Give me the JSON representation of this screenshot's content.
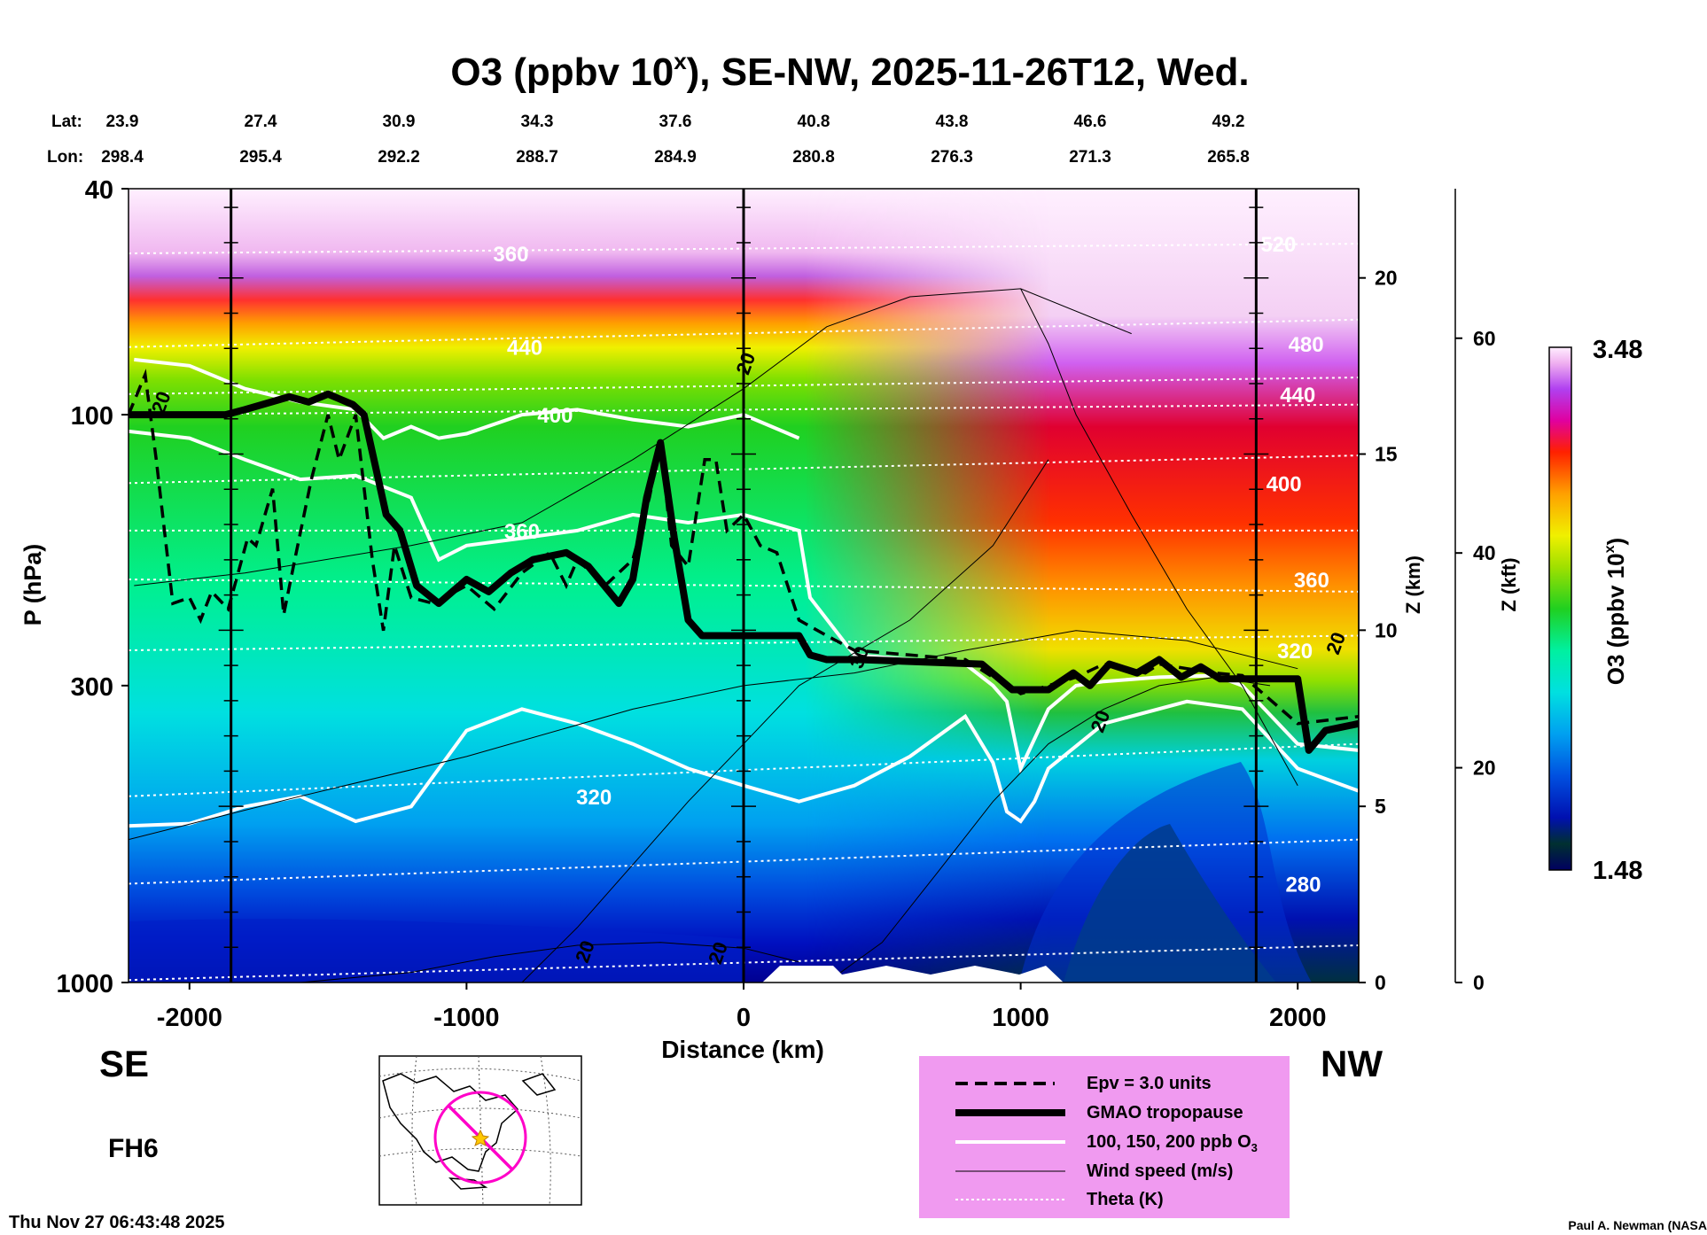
{
  "chart_data": {
    "type": "heatmap",
    "title": "O3 (ppbv 10",
    "title_sup": "x",
    "title_rest": "), SE-NW, 2025-11-26T12, Wed.",
    "x_axis": {
      "label": "Distance (km)",
      "range": [
        -2220,
        2220
      ],
      "ticks": [
        "-2000",
        "-1000",
        "0",
        "1000",
        "2000"
      ],
      "tick_values": [
        -2000,
        -1000,
        0,
        1000,
        2000
      ]
    },
    "p_axis": {
      "label": "P (hPa)",
      "range": [
        1000,
        40
      ],
      "ticks": [
        "40",
        "100",
        "300",
        "1000"
      ],
      "tick_values": [
        40,
        100,
        300,
        1000
      ]
    },
    "z_km_axis": {
      "label": "Z (km)",
      "ticks": [
        "0",
        "5",
        "10",
        "15",
        "20"
      ],
      "tick_values": [
        0,
        5,
        10,
        15,
        20
      ]
    },
    "z_kft_axis": {
      "label": "Z (kft)",
      "ticks": [
        "0",
        "20",
        "40",
        "60"
      ],
      "tick_values": [
        0,
        20,
        40,
        60
      ]
    },
    "lat_label": "Lat:",
    "lon_label": "Lon:",
    "lat": [
      "23.9",
      "27.4",
      "30.9",
      "34.3",
      "37.6",
      "40.8",
      "43.8",
      "46.6",
      "49.2"
    ],
    "lon": [
      "298.4",
      "295.4",
      "292.2",
      "288.7",
      "284.9",
      "280.8",
      "276.3",
      "271.3",
      "265.8"
    ],
    "station_x": [
      -2200,
      -1700,
      -1200,
      -700,
      -200,
      300,
      800,
      1300,
      1800
    ],
    "vertical_lines_x": [
      -1850,
      0,
      1850
    ],
    "direction_left": "SE",
    "direction_right": "NW",
    "forecast_hour": "FH6",
    "colorbar": {
      "label": "O3 (ppbv 10",
      "label_sup": "x",
      "label_end": ")",
      "max": "3.48",
      "min": "1.48",
      "min_value": 1.48,
      "max_value": 3.48
    },
    "theta_labels": [
      {
        "text": "360",
        "x": -840,
        "p": 52
      },
      {
        "text": "440",
        "x": -790,
        "p": 76
      },
      {
        "text": "400",
        "x": -680,
        "p": 100
      },
      {
        "text": "360",
        "x": -800,
        "p": 160
      },
      {
        "text": "320",
        "x": -540,
        "p": 470
      },
      {
        "text": "520",
        "x": 1930,
        "p": 50
      },
      {
        "text": "480",
        "x": 2030,
        "p": 75
      },
      {
        "text": "440",
        "x": 2000,
        "p": 92
      },
      {
        "text": "400",
        "x": 1950,
        "p": 132
      },
      {
        "text": "360",
        "x": 2050,
        "p": 195
      },
      {
        "text": "320",
        "x": 1990,
        "p": 260
      },
      {
        "text": "280",
        "x": 2020,
        "p": 670
      }
    ],
    "wind_labels": [
      {
        "text": "20",
        "x": -2080,
        "p": 96
      },
      {
        "text": "20",
        "x": 30,
        "p": 82
      },
      {
        "text": "30",
        "x": 440,
        "p": 270
      },
      {
        "text": "20",
        "x": 1310,
        "p": 350
      },
      {
        "text": "20",
        "x": 2160,
        "p": 255
      },
      {
        "text": "20",
        "x": -550,
        "p": 890
      },
      {
        "text": "20",
        "x": -70,
        "p": 895
      }
    ],
    "tropopause": {
      "x": [
        -2220,
        -1870,
        -1800,
        -1640,
        -1570,
        -1500,
        -1410,
        -1370,
        -1290,
        -1240,
        -1180,
        -1100,
        -1000,
        -920,
        -840,
        -760,
        -640,
        -560,
        -450,
        -400,
        -350,
        -300,
        -250,
        -200,
        -150,
        0,
        200,
        240,
        300,
        420,
        600,
        860,
        970,
        1100,
        1190,
        1250,
        1320,
        1420,
        1500,
        1580,
        1650,
        1720,
        1800,
        2000,
        2040,
        2100,
        2220
      ],
      "p": [
        100,
        100,
        98,
        93,
        95,
        92,
        96,
        100,
        150,
        160,
        200,
        215,
        195,
        205,
        190,
        180,
        175,
        185,
        215,
        195,
        140,
        112,
        165,
        230,
        245,
        245,
        245,
        265,
        270,
        270,
        272,
        275,
        305,
        305,
        285,
        300,
        275,
        285,
        270,
        290,
        278,
        292,
        292,
        292,
        390,
        360,
        350
      ]
    },
    "epv_line": {
      "x": [
        -2220,
        -2160,
        -2120,
        -2060,
        -2000,
        -1960,
        -1920,
        -1860,
        -1790,
        -1760,
        -1700,
        -1660,
        -1620,
        -1560,
        -1500,
        -1460,
        -1400,
        -1340,
        -1300,
        -1260,
        -1200,
        -1120,
        -1000,
        -900,
        -800,
        -700,
        -640,
        -600,
        -500,
        -400,
        -340,
        -300,
        -260,
        -200,
        -140,
        -100,
        -60,
        0,
        60,
        120,
        200,
        300,
        400,
        600,
        800,
        900,
        960,
        1000,
        1100,
        1200,
        1300,
        1450,
        1500,
        1600,
        1700,
        1800,
        2000,
        2220
      ],
      "p": [
        100,
        85,
        120,
        215,
        210,
        230,
        205,
        220,
        165,
        170,
        135,
        225,
        180,
        130,
        100,
        120,
        100,
        180,
        240,
        170,
        210,
        215,
        200,
        220,
        190,
        175,
        200,
        180,
        200,
        180,
        140,
        112,
        170,
        185,
        120,
        120,
        160,
        150,
        170,
        175,
        230,
        245,
        260,
        265,
        270,
        290,
        300,
        310,
        300,
        290,
        275,
        285,
        275,
        280,
        285,
        288,
        350,
        340
      ]
    },
    "contour_100": {
      "x": [
        -2220,
        -2000,
        -1800,
        -1600,
        -1400,
        -1200,
        -1000,
        -800,
        -600,
        -400,
        -200,
        0,
        200,
        400,
        600,
        800,
        900,
        950,
        1000,
        1050,
        1100,
        1300,
        1600,
        1800,
        2000,
        2220
      ],
      "p": [
        530,
        525,
        490,
        470,
        520,
        490,
        360,
        330,
        350,
        380,
        420,
        450,
        480,
        450,
        400,
        340,
        410,
        500,
        520,
        480,
        420,
        350,
        320,
        330,
        420,
        460
      ]
    },
    "contour_150": {
      "x": [
        -2220,
        -2000,
        -1800,
        -1600,
        -1400,
        -1200,
        -1100,
        -1000,
        -800,
        -600,
        -400,
        -200,
        0,
        200,
        240,
        400,
        600,
        800,
        900,
        950,
        1000,
        1100,
        1200,
        1300,
        1500,
        1700,
        1800,
        2000,
        2220
      ],
      "p": [
        107,
        110,
        120,
        130,
        128,
        140,
        180,
        170,
        165,
        160,
        150,
        155,
        150,
        160,
        210,
        265,
        270,
        275,
        300,
        320,
        420,
        330,
        300,
        295,
        290,
        288,
        300,
        380,
        390
      ]
    },
    "contour_200": {
      "x": [
        -2200,
        -2000,
        -1800,
        -1600,
        -1400,
        -1300,
        -1200,
        -1100,
        -1000,
        -800,
        -600,
        -400,
        -200,
        0,
        200
      ],
      "p": [
        80,
        82,
        90,
        95,
        98,
        110,
        105,
        110,
        108,
        100,
        98,
        102,
        105,
        100,
        110
      ]
    },
    "legend": {
      "items": [
        {
          "label": "Epv = 3.0 units",
          "style": "dashed"
        },
        {
          "label": "GMAO tropopause",
          "style": "thick"
        },
        {
          "label": "100, 150, 200 ppb O",
          "sub": "3",
          "style": "white"
        },
        {
          "label": "Wind speed (m/s)",
          "style": "thin"
        },
        {
          "label": "Theta (K)",
          "style": "dotted"
        }
      ]
    },
    "timestamp": "Thu Nov 27 06:43:48 2025",
    "credit": "Paul A. Newman (NASA"
  }
}
